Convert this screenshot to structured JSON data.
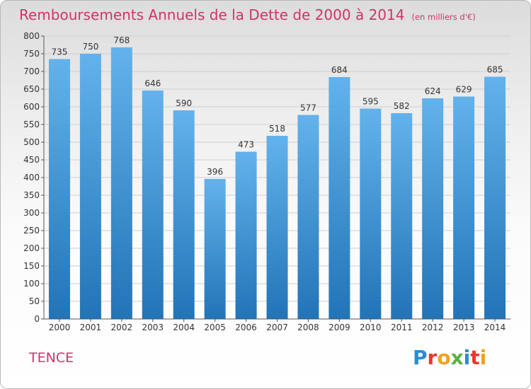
{
  "header": {
    "title": "Remboursements Annuels de la Dette de 2000 à 2014",
    "unit": "(en milliers d'€)"
  },
  "footer": {
    "commune": "TENCE",
    "logo_text": "Proxiti"
  },
  "colors": {
    "title": "#d2326a",
    "bar_top": "#63b2eb",
    "bar_bottom": "#2274b7"
  },
  "chart_data": {
    "type": "bar",
    "title": "Remboursements Annuels de la Dette de 2000 à 2014",
    "xlabel": "",
    "ylabel": "",
    "categories": [
      "2000",
      "2001",
      "2002",
      "2003",
      "2004",
      "2005",
      "2006",
      "2007",
      "2008",
      "2009",
      "2010",
      "2011",
      "2012",
      "2013",
      "2014"
    ],
    "values": [
      735,
      750,
      768,
      646,
      590,
      396,
      473,
      518,
      577,
      684,
      595,
      582,
      624,
      629,
      685
    ],
    "ylim": [
      0,
      800
    ],
    "ytick_step": 50,
    "grid": true,
    "data_labels": true
  }
}
